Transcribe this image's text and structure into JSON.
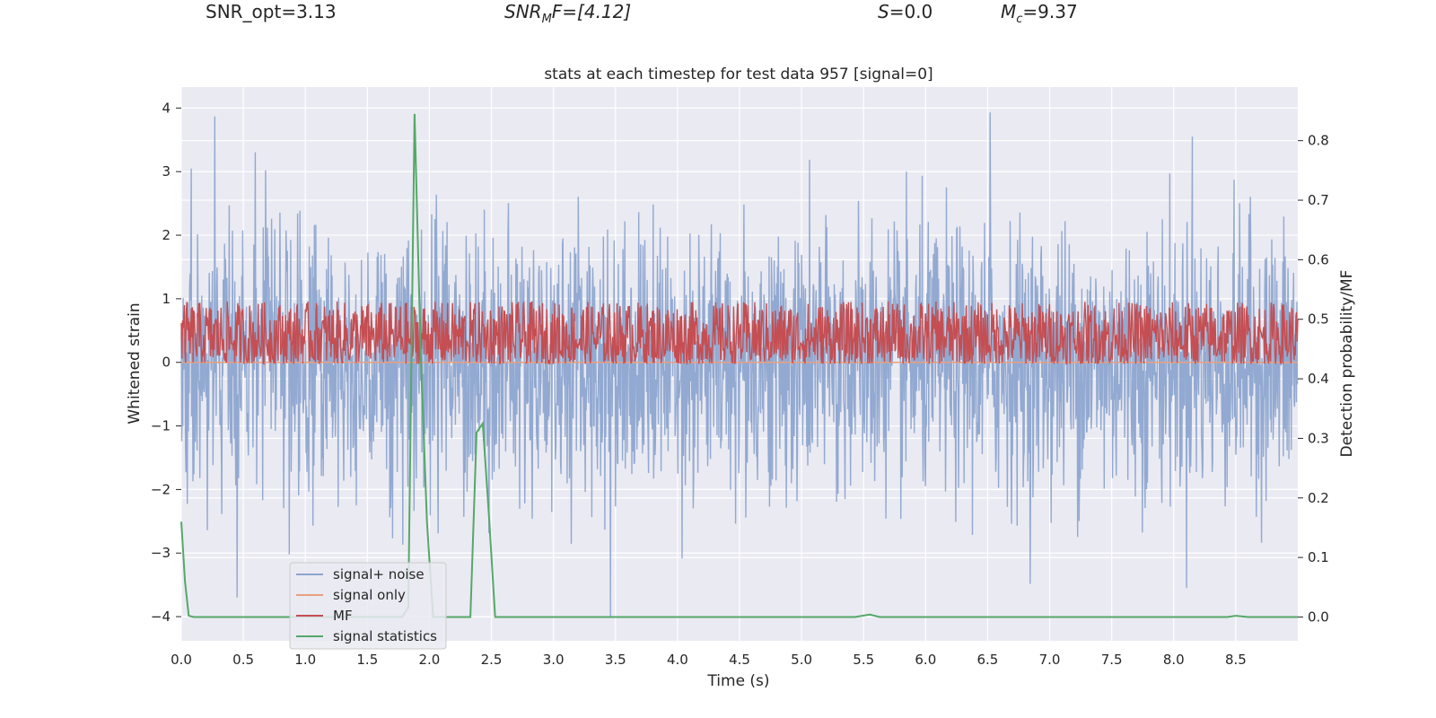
{
  "header": {
    "snr_opt": "SNR_opt=3.13",
    "snr_mf": {
      "base": "SNR",
      "sub": "M",
      "rest": "F=[4.12]"
    },
    "s": {
      "sym": "S",
      "rest": "=0.0"
    },
    "mc": {
      "base": "M",
      "sub": "c",
      "rest": "=9.37"
    }
  },
  "chart_data": {
    "type": "line",
    "title": "stats at each timestep for test data 957 [signal=0]",
    "xlabel": "Time (s)",
    "ylabel": "Whitened strain",
    "y2label": "Detection probability/MF",
    "xlim": [
      0.0,
      9.0
    ],
    "ylim": [
      -4.38,
      4.33
    ],
    "y2lim": [
      -0.04,
      0.89
    ],
    "xticks": [
      "0.0",
      "0.5",
      "1.0",
      "1.5",
      "2.0",
      "2.5",
      "3.0",
      "3.5",
      "4.0",
      "4.5",
      "5.0",
      "5.5",
      "6.0",
      "6.5",
      "7.0",
      "7.5",
      "8.0",
      "8.5"
    ],
    "yticks": [
      "4",
      "3",
      "2",
      "1",
      "0",
      "−1",
      "−2",
      "−3",
      "−4"
    ],
    "y2ticks": [
      "0.8",
      "0.7",
      "0.6",
      "0.5",
      "0.4",
      "0.3",
      "0.2",
      "0.1",
      "0.0"
    ],
    "grid": true,
    "legend_position": "lower-left",
    "colors": {
      "noise": "#8da5cf",
      "signal": "#e8a07f",
      "mf": "#c44e52",
      "stats": "#55a868",
      "plot_bg": "#eaeaf2",
      "grid": "#ffffff"
    },
    "series": [
      {
        "name": "signal+ noise",
        "axis": "left",
        "kind": "noise",
        "mean": 0.0,
        "std": 1.0,
        "notable_peaks": [
          [
            0.27,
            3.87
          ],
          [
            3.46,
            -4.0
          ],
          [
            6.52,
            3.93
          ],
          [
            8.15,
            3.55
          ],
          [
            0.08,
            3.05
          ],
          [
            0.45,
            -3.7
          ]
        ]
      },
      {
        "name": "signal only",
        "axis": "left",
        "kind": "constant",
        "value": 0.0
      },
      {
        "name": "MF",
        "axis": "right",
        "kind": "band",
        "min": 0.425,
        "max": 0.53
      },
      {
        "name": "signal statistics",
        "axis": "right",
        "kind": "line",
        "x": [
          0.0,
          0.03,
          0.06,
          0.1,
          0.2,
          1.78,
          1.83,
          1.88,
          1.93,
          1.98,
          2.03,
          2.33,
          2.38,
          2.43,
          2.48,
          2.53,
          5.43,
          5.55,
          5.63,
          8.43,
          8.5,
          8.6,
          9.0
        ],
        "y": [
          0.16,
          0.06,
          0.002,
          0.0,
          0.0,
          0.0,
          0.016,
          0.845,
          0.44,
          0.16,
          0.0,
          0.0,
          0.31,
          0.325,
          0.17,
          0.0,
          0.0,
          0.004,
          0.0,
          0.0,
          0.002,
          0.0,
          0.0
        ]
      }
    ]
  }
}
